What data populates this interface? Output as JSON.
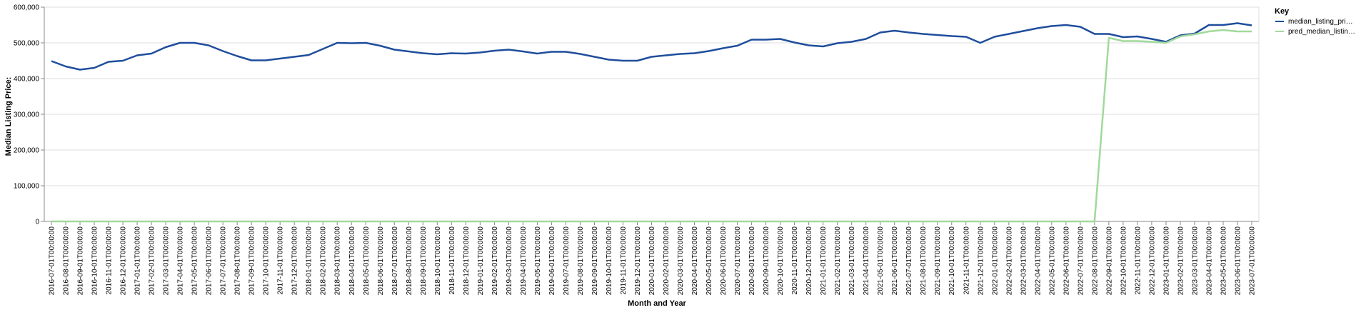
{
  "chart_data": {
    "type": "line",
    "xlabel": "Month and Year",
    "ylabel": "Median Listing Price:",
    "ylim": [
      0,
      600000
    ],
    "y_ticks": [
      "0",
      "100,000",
      "200,000",
      "300,000",
      "400,000",
      "500,000",
      "600,000"
    ],
    "grid": true,
    "legend": {
      "title": "Key",
      "placement": "right"
    },
    "x": [
      "2016-07-01T00:00:00",
      "2016-08-01T00:00:00",
      "2016-09-01T00:00:00",
      "2016-10-01T00:00:00",
      "2016-11-01T00:00:00",
      "2016-12-01T00:00:00",
      "2017-01-01T00:00:00",
      "2017-02-01T00:00:00",
      "2017-03-01T00:00:00",
      "2017-04-01T00:00:00",
      "2017-05-01T00:00:00",
      "2017-06-01T00:00:00",
      "2017-07-01T00:00:00",
      "2017-08-01T00:00:00",
      "2017-09-01T00:00:00",
      "2017-10-01T00:00:00",
      "2017-11-01T00:00:00",
      "2017-12-01T00:00:00",
      "2018-01-01T00:00:00",
      "2018-02-01T00:00:00",
      "2018-03-01T00:00:00",
      "2018-04-01T00:00:00",
      "2018-05-01T00:00:00",
      "2018-06-01T00:00:00",
      "2018-07-01T00:00:00",
      "2018-08-01T00:00:00",
      "2018-09-01T00:00:00",
      "2018-10-01T00:00:00",
      "2018-11-01T00:00:00",
      "2018-12-01T00:00:00",
      "2019-01-01T00:00:00",
      "2019-02-01T00:00:00",
      "2019-03-01T00:00:00",
      "2019-04-01T00:00:00",
      "2019-05-01T00:00:00",
      "2019-06-01T00:00:00",
      "2019-07-01T00:00:00",
      "2019-08-01T00:00:00",
      "2019-09-01T00:00:00",
      "2019-10-01T00:00:00",
      "2019-11-01T00:00:00",
      "2019-12-01T00:00:00",
      "2020-01-01T00:00:00",
      "2020-02-01T00:00:00",
      "2020-03-01T00:00:00",
      "2020-04-01T00:00:00",
      "2020-05-01T00:00:00",
      "2020-06-01T00:00:00",
      "2020-07-01T00:00:00",
      "2020-08-01T00:00:00",
      "2020-09-01T00:00:00",
      "2020-10-01T00:00:00",
      "2020-11-01T00:00:00",
      "2020-12-01T00:00:00",
      "2021-01-01T00:00:00",
      "2021-02-01T00:00:00",
      "2021-03-01T00:00:00",
      "2021-04-01T00:00:00",
      "2021-05-01T00:00:00",
      "2021-06-01T00:00:00",
      "2021-07-01T00:00:00",
      "2021-08-01T00:00:00",
      "2021-09-01T00:00:00",
      "2021-10-01T00:00:00",
      "2021-11-01T00:00:00",
      "2021-12-01T00:00:00",
      "2022-01-01T00:00:00",
      "2022-02-01T00:00:00",
      "2022-03-01T00:00:00",
      "2022-04-01T00:00:00",
      "2022-05-01T00:00:00",
      "2022-06-01T00:00:00",
      "2022-07-01T00:00:00",
      "2022-08-01T00:00:00",
      "2022-09-01T00:00:00",
      "2022-10-01T00:00:00",
      "2022-11-01T00:00:00",
      "2022-12-01T00:00:00",
      "2023-01-01T00:00:00",
      "2023-02-01T00:00:00",
      "2023-03-01T00:00:00",
      "2023-04-01T00:00:00",
      "2023-05-01T00:00:00",
      "2023-06-01T00:00:00",
      "2023-07-01T00:00:00"
    ],
    "series": [
      {
        "name": "median_listing_pri…",
        "color": "#1f4e9c",
        "values": [
          449000,
          434000,
          425000,
          430000,
          447000,
          450000,
          465000,
          470000,
          488000,
          500000,
          500000,
          493000,
          477000,
          463000,
          451000,
          451000,
          456000,
          461000,
          466000,
          483000,
          500000,
          499000,
          500000,
          492000,
          481000,
          476000,
          471000,
          468000,
          471000,
          470000,
          473000,
          478000,
          481000,
          476000,
          470000,
          475000,
          475000,
          469000,
          461000,
          453000,
          450000,
          450000,
          461000,
          465000,
          469000,
          471000,
          477000,
          485000,
          492000,
          509000,
          509000,
          511000,
          501000,
          493000,
          490000,
          499000,
          503000,
          511000,
          529000,
          534000,
          529000,
          525000,
          522000,
          519000,
          517000,
          500000,
          517000,
          525000,
          533000,
          541000,
          547000,
          550000,
          545000,
          525000,
          525000,
          516000,
          518000,
          511000,
          503000,
          521000,
          526000,
          550000,
          550000,
          555000,
          549000
        ]
      },
      {
        "name": "pred_median_listin…",
        "color": "#a1d99b",
        "values": [
          0,
          0,
          0,
          0,
          0,
          0,
          0,
          0,
          0,
          0,
          0,
          0,
          0,
          0,
          0,
          0,
          0,
          0,
          0,
          0,
          0,
          0,
          0,
          0,
          0,
          0,
          0,
          0,
          0,
          0,
          0,
          0,
          0,
          0,
          0,
          0,
          0,
          0,
          0,
          0,
          0,
          0,
          0,
          0,
          0,
          0,
          0,
          0,
          0,
          0,
          0,
          0,
          0,
          0,
          0,
          0,
          0,
          0,
          0,
          0,
          0,
          0,
          0,
          0,
          0,
          0,
          0,
          0,
          0,
          0,
          0,
          0,
          0,
          0,
          514000,
          505000,
          505000,
          503000,
          500000,
          518000,
          524000,
          532000,
          536000,
          532000,
          532000
        ]
      }
    ]
  }
}
